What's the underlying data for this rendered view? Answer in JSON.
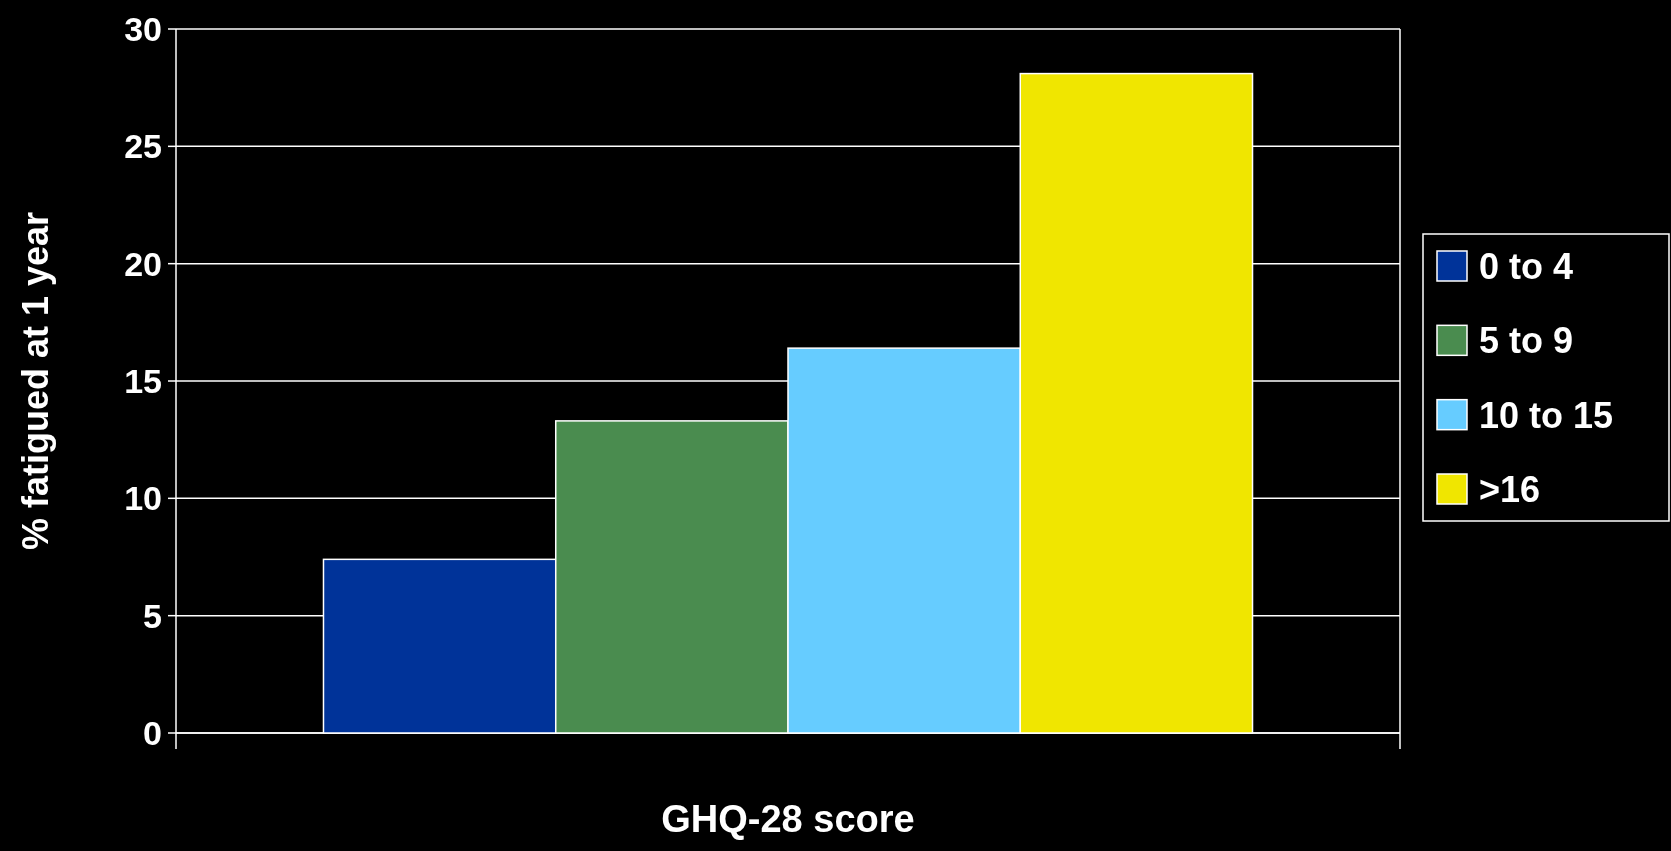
{
  "chart_data": {
    "type": "bar",
    "xlabel": "GHQ-28 score",
    "ylabel": "% fatigued at 1 year",
    "categories": [
      null
    ],
    "series": [
      {
        "name": "0 to 4",
        "color": "#003399",
        "values": [
          7.4
        ]
      },
      {
        "name": "5 to 9",
        "color": "#4a8c4f",
        "values": [
          13.3
        ]
      },
      {
        "name": "10 to 15",
        "color": "#66ccff",
        "values": [
          16.4
        ]
      },
      {
        "name": ">16",
        "color": "#f0e600",
        "values": [
          28.1
        ]
      }
    ],
    "ylim": [
      0,
      30
    ],
    "yticks": [
      0,
      5,
      10,
      15,
      20,
      25,
      30
    ],
    "grid": "y",
    "legend": "right"
  }
}
